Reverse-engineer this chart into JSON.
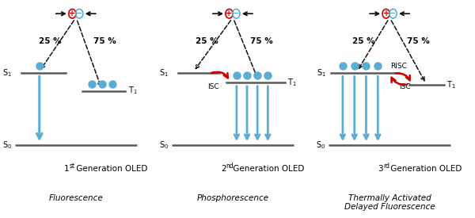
{
  "bg_color": "#ffffff",
  "panel_titles": [
    "1",
    "st",
    " Generation OLED",
    "2",
    "nd",
    " Generation OLED",
    "3",
    "rd",
    " Generation OLED"
  ],
  "subtitles": [
    "Fluorescence",
    "Phosphorescence",
    "Thermally Activated\nDelayed Fluorescence"
  ],
  "energy_level_color": "#5a5a5a",
  "arrow_color": "#5badd6",
  "dashed_arrow_color": "#111111",
  "red_arrow_color": "#cc0000",
  "dot_color": "#5badd6",
  "plus_color": "#cc0000",
  "minus_color": "#5badd6"
}
